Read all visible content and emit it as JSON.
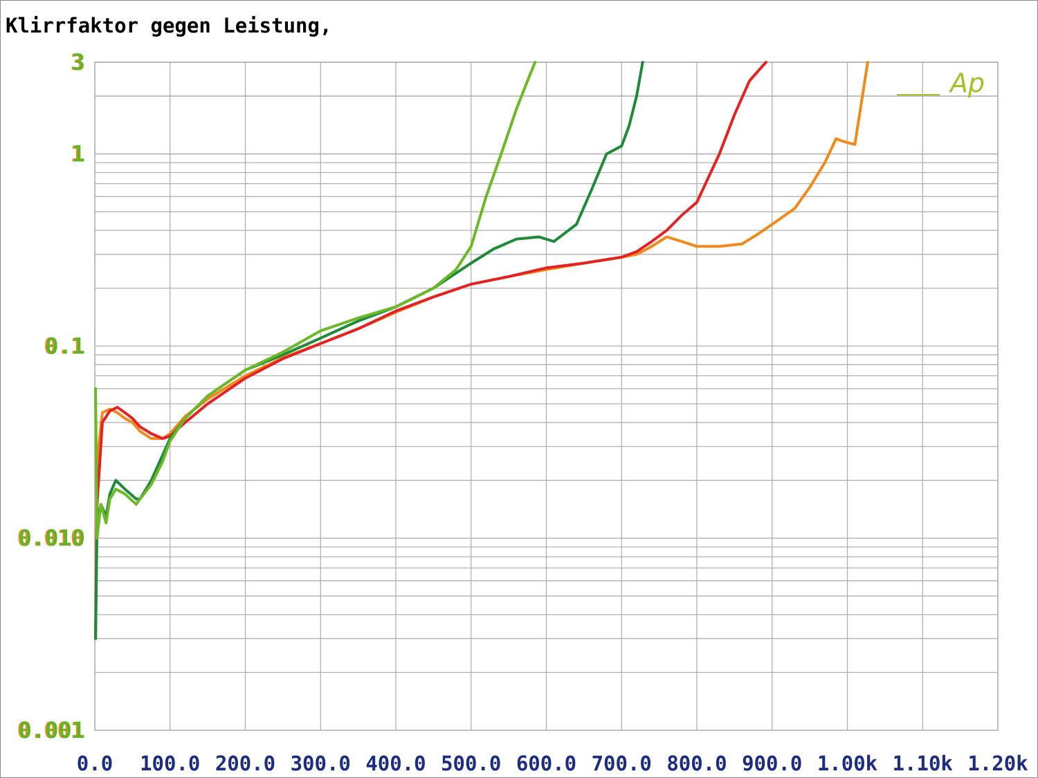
{
  "chart_data": {
    "type": "line",
    "title": "Klirrfaktor gegen Leistung,",
    "xlabel": "",
    "ylabel": "",
    "xlim": [
      0,
      1200
    ],
    "ylim": [
      0.001,
      3
    ],
    "yscale": "log",
    "grid": true,
    "y_ticks": [
      {
        "value": 3,
        "label": "3"
      },
      {
        "value": 1,
        "label": "1"
      },
      {
        "value": 0.1,
        "label": "0.1"
      },
      {
        "value": 0.01,
        "label": "0.010"
      },
      {
        "value": 0.001,
        "label": "0.001"
      }
    ],
    "x_ticks": [
      {
        "value": 0,
        "label": "0.0"
      },
      {
        "value": 100,
        "label": "100.0"
      },
      {
        "value": 200,
        "label": "200.0"
      },
      {
        "value": 300,
        "label": "300.0"
      },
      {
        "value": 400,
        "label": "400.0"
      },
      {
        "value": 500,
        "label": "500.0"
      },
      {
        "value": 600,
        "label": "600.0"
      },
      {
        "value": 700,
        "label": "700.0"
      },
      {
        "value": 800,
        "label": "800.0"
      },
      {
        "value": 900,
        "label": "900.0"
      },
      {
        "value": 1000,
        "label": "1.00k"
      },
      {
        "value": 1100,
        "label": "1.10k"
      },
      {
        "value": 1200,
        "label": "1.20k"
      }
    ],
    "series": [
      {
        "color": "#f08a1c",
        "x": [
          1,
          3,
          10,
          20,
          30,
          40,
          50,
          60,
          75,
          90,
          100,
          120,
          150,
          200,
          250,
          300,
          350,
          400,
          450,
          500,
          550,
          600,
          650,
          700,
          720,
          740,
          760,
          780,
          800,
          830,
          860,
          880,
          900,
          930,
          950,
          970,
          985,
          995,
          1010,
          1020,
          1027
        ],
        "y": [
          0.003,
          0.025,
          0.045,
          0.047,
          0.045,
          0.042,
          0.04,
          0.036,
          0.033,
          0.033,
          0.035,
          0.043,
          0.053,
          0.07,
          0.087,
          0.103,
          0.123,
          0.15,
          0.18,
          0.21,
          0.23,
          0.25,
          0.27,
          0.29,
          0.3,
          0.33,
          0.37,
          0.35,
          0.33,
          0.33,
          0.34,
          0.38,
          0.43,
          0.52,
          0.67,
          0.9,
          1.2,
          1.16,
          1.12,
          2.0,
          3.0
        ]
      },
      {
        "color": "#e32323",
        "x": [
          1,
          3,
          10,
          20,
          30,
          40,
          50,
          60,
          75,
          90,
          100,
          120,
          150,
          200,
          250,
          300,
          350,
          400,
          450,
          500,
          550,
          600,
          650,
          700,
          720,
          740,
          760,
          780,
          800,
          830,
          850,
          870,
          885,
          892
        ],
        "y": [
          0.003,
          0.015,
          0.04,
          0.046,
          0.048,
          0.045,
          0.042,
          0.038,
          0.035,
          0.033,
          0.034,
          0.04,
          0.05,
          0.068,
          0.086,
          0.103,
          0.123,
          0.152,
          0.18,
          0.21,
          0.23,
          0.255,
          0.27,
          0.29,
          0.31,
          0.35,
          0.4,
          0.48,
          0.56,
          1.0,
          1.6,
          2.4,
          2.8,
          3.0
        ]
      },
      {
        "color": "#1e8a3a",
        "x": [
          1,
          3,
          8,
          15,
          20,
          28,
          40,
          55,
          60,
          75,
          90,
          100,
          120,
          150,
          200,
          250,
          300,
          350,
          400,
          450,
          500,
          530,
          560,
          590,
          610,
          640,
          660,
          680,
          700,
          710,
          720,
          728
        ],
        "y": [
          0.003,
          0.012,
          0.015,
          0.013,
          0.017,
          0.02,
          0.018,
          0.016,
          0.016,
          0.02,
          0.027,
          0.033,
          0.042,
          0.055,
          0.075,
          0.09,
          0.11,
          0.135,
          0.16,
          0.2,
          0.27,
          0.32,
          0.36,
          0.37,
          0.35,
          0.43,
          0.65,
          1.0,
          1.1,
          1.4,
          2.0,
          3.0
        ]
      },
      {
        "color": "#6cb829",
        "x": [
          1,
          3,
          8,
          15,
          20,
          28,
          40,
          55,
          60,
          75,
          90,
          100,
          120,
          150,
          200,
          250,
          300,
          350,
          400,
          450,
          480,
          500,
          520,
          540,
          560,
          575,
          585
        ],
        "y": [
          0.06,
          0.01,
          0.015,
          0.012,
          0.016,
          0.018,
          0.017,
          0.015,
          0.016,
          0.019,
          0.025,
          0.032,
          0.042,
          0.055,
          0.075,
          0.093,
          0.12,
          0.14,
          0.16,
          0.2,
          0.25,
          0.33,
          0.6,
          1.0,
          1.7,
          2.4,
          3.0
        ]
      }
    ]
  },
  "badge": {
    "text": "Ap",
    "color": "#a5bf2a"
  },
  "colors": {
    "grid": "#b0b0b0",
    "ytick": "#63b32a",
    "ytick_shadow": "#f08a1c",
    "xtick": "#1c2d80"
  }
}
